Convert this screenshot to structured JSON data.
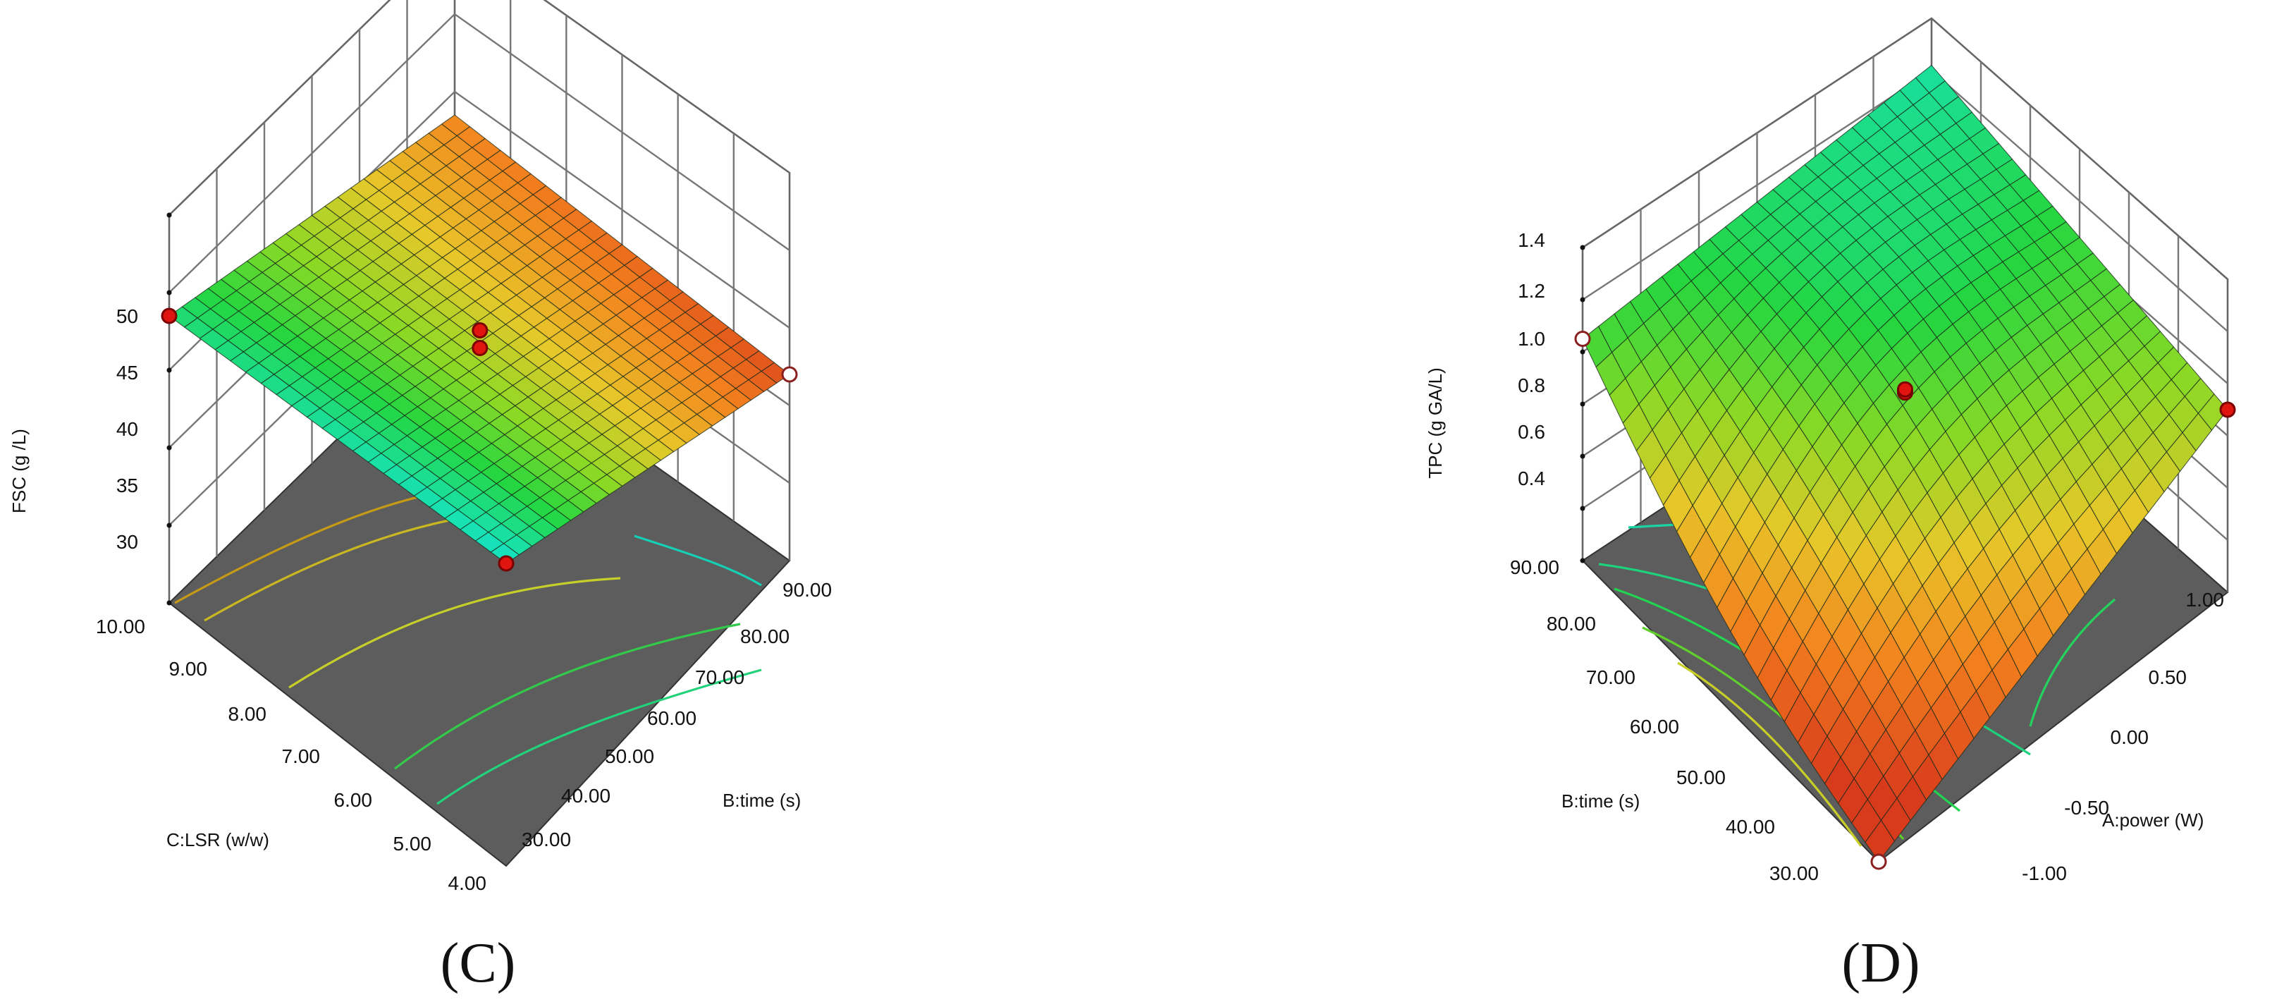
{
  "chart_data": [
    {
      "type": "surface3d",
      "panel_label": "(C)",
      "zlabel": "FSC (g /L)",
      "xlabel": "C:LSR (w/w)",
      "ylabel": "B:time (s)",
      "z_ticks": [
        "50",
        "45",
        "40",
        "35",
        "30"
      ],
      "x_ticks": [
        "10.00",
        "9.00",
        "8.00",
        "7.00",
        "6.00",
        "5.00",
        "4.00"
      ],
      "y_ticks": [
        "30.00",
        "40.00",
        "50.00",
        "60.00",
        "70.00",
        "80.00",
        "90.00"
      ],
      "zlim": [
        25,
        50
      ],
      "x_range": [
        4,
        10
      ],
      "y_range": [
        30,
        90
      ],
      "surface_corners": {
        "lsr10_time30": 43.5,
        "lsr10_time90": 38.5,
        "lsr4_time30": 44.5,
        "lsr4_time90": 37.0
      },
      "design_points": [
        {
          "x": 10,
          "y": 30,
          "z": 43.5,
          "above": true
        },
        {
          "x": 4,
          "y": 30,
          "z": 44.5,
          "above": true
        },
        {
          "x": 7,
          "y": 60,
          "z": 40.5,
          "above": true
        },
        {
          "x": 7,
          "y": 60,
          "z": 41.0,
          "above": true
        },
        {
          "x": 4,
          "y": 90,
          "z": 37.0,
          "above": false
        }
      ],
      "contour_levels": [
        34,
        36,
        38,
        40,
        42,
        44
      ]
    },
    {
      "type": "surface3d",
      "panel_label": "(D)",
      "zlabel": "TPC (g GA/L)",
      "xlabel": "A:power (W)",
      "ylabel": "B:time (s)",
      "z_ticks": [
        "1.4",
        "1.2",
        "1.0",
        "0.8",
        "0.6",
        "0.4"
      ],
      "x_ticks": [
        "1.00",
        "0.50",
        "0.00",
        "-0.50",
        "-1.00"
      ],
      "y_ticks": [
        "90.00",
        "80.00",
        "70.00",
        "60.00",
        "50.00",
        "40.00",
        "30.00"
      ],
      "zlim": [
        0.2,
        1.4
      ],
      "x_range": [
        -1,
        1
      ],
      "y_range": [
        30,
        90
      ],
      "surface_corners": {
        "powerm1_time90": 1.05,
        "powerm1_time30": 0.2,
        "power1_time90": 1.22,
        "power1_time30": 0.9
      },
      "design_points": [
        {
          "x": -1,
          "y": 90,
          "z": 1.05,
          "above": false
        },
        {
          "x": -1,
          "y": 30,
          "z": 0.2,
          "above": false
        },
        {
          "x": 1,
          "y": 30,
          "z": 0.9,
          "above": true
        },
        {
          "x": 0,
          "y": 60,
          "z": 0.95,
          "above": true
        },
        {
          "x": 0,
          "y": 60,
          "z": 0.9,
          "above": true
        },
        {
          "x": 0,
          "y": 60,
          "z": 0.88,
          "above": true
        }
      ],
      "contour_levels": [
        0.4,
        0.5,
        0.6,
        0.7,
        0.8,
        0.9
      ]
    }
  ]
}
